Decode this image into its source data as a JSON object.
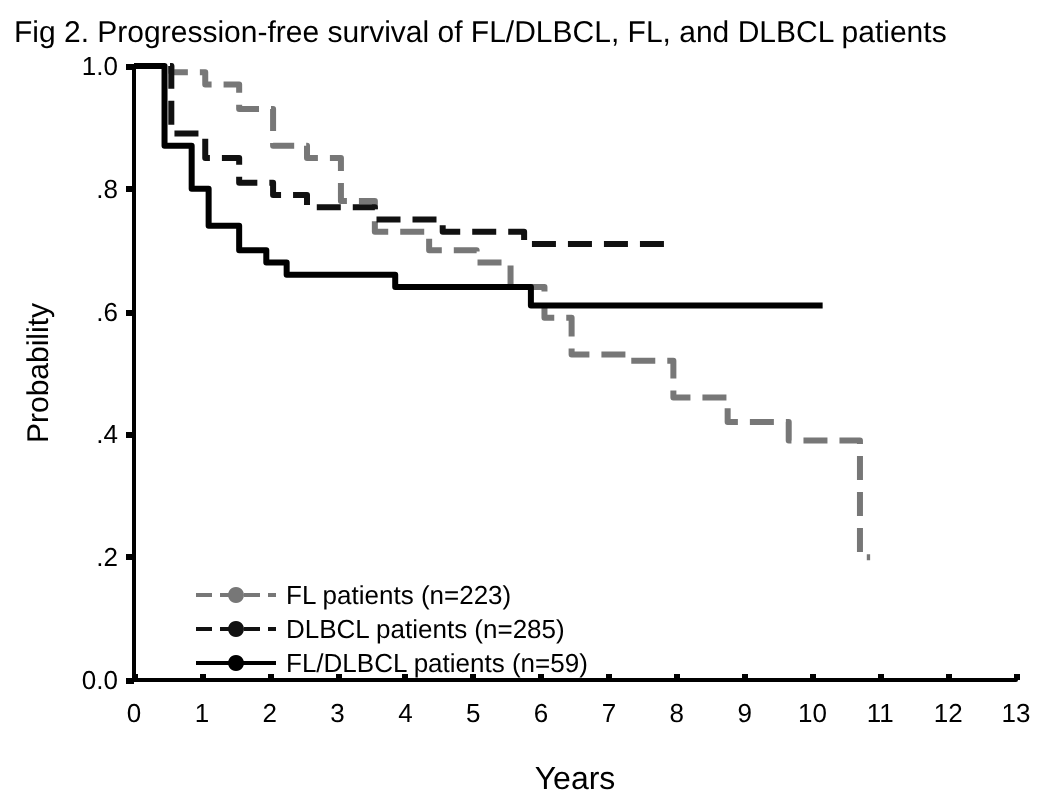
{
  "chart_data": {
    "type": "step",
    "title": "Fig 2. Progression-free survival of FL/DLBCL, FL, and DLBCL patients",
    "xlabel": "Years",
    "ylabel": "Probability",
    "xlim": [
      0,
      13
    ],
    "xticks": [
      0,
      1,
      2,
      3,
      4,
      5,
      6,
      7,
      8,
      9,
      10,
      11,
      12,
      13
    ],
    "ylim": [
      0,
      1
    ],
    "yticks": [
      {
        "value": 0,
        "label": "0.0"
      },
      {
        "value": 0.2,
        "label": ".2"
      },
      {
        "value": 0.4,
        "label": ".4"
      },
      {
        "value": 0.6,
        "label": ".6"
      },
      {
        "value": 0.8,
        "label": ".8"
      },
      {
        "value": 1,
        "label": "1.0"
      }
    ],
    "grid": false,
    "legend": "bottom left",
    "series": [
      {
        "name": "FL patients (n=223)",
        "color": "#777777",
        "line_style": "dashed",
        "x": [
          0,
          0.55,
          1.05,
          1.55,
          2.05,
          2.55,
          3.05,
          3.55,
          4.35,
          5.05,
          5.55,
          6.05,
          6.45,
          7.25,
          7.95,
          8.75,
          9.65,
          10.7,
          10.85
        ],
        "values": [
          1,
          0.99,
          0.97,
          0.93,
          0.87,
          0.85,
          0.78,
          0.73,
          0.7,
          0.68,
          0.64,
          0.59,
          0.53,
          0.52,
          0.46,
          0.42,
          0.39,
          0.2,
          0.2
        ]
      },
      {
        "name": "DLBCL patients (n=285)",
        "color": "#111111",
        "line_style": "dashed",
        "x": [
          0,
          0.55,
          1.05,
          1.55,
          2.05,
          2.55,
          3.55,
          4.55,
          5.75,
          7.9
        ],
        "values": [
          1,
          0.89,
          0.85,
          0.81,
          0.79,
          0.77,
          0.75,
          0.73,
          0.71,
          0.71
        ]
      },
      {
        "name": "FL/DLBCL patients (n=59)",
        "color": "#000000",
        "line_style": "solid",
        "x": [
          0,
          0.45,
          0.85,
          1.1,
          1.55,
          1.95,
          2.25,
          3.85,
          5.85,
          10.15
        ],
        "values": [
          1,
          0.87,
          0.8,
          0.74,
          0.7,
          0.68,
          0.66,
          0.64,
          0.61,
          0.61
        ]
      }
    ]
  }
}
